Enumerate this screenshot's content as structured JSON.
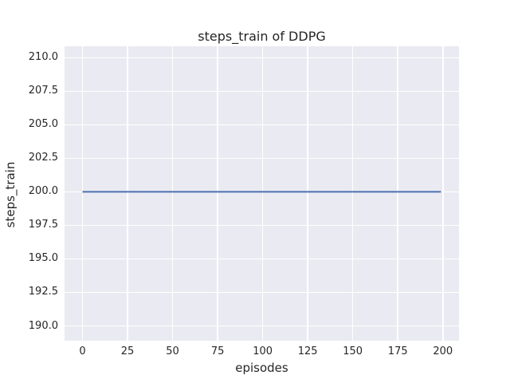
{
  "chart_data": {
    "type": "line",
    "title": "steps_train of DDPG",
    "xlabel": "episodes",
    "ylabel": "steps_train",
    "xlim": [
      -9.95,
      208.95
    ],
    "ylim": [
      188.9,
      210.85
    ],
    "xticks": [
      0,
      25,
      50,
      75,
      100,
      125,
      150,
      175,
      200
    ],
    "xtick_labels": [
      "0",
      "25",
      "50",
      "75",
      "100",
      "125",
      "150",
      "175",
      "200"
    ],
    "yticks": [
      190.0,
      192.5,
      195.0,
      197.5,
      200.0,
      202.5,
      205.0,
      207.5,
      210.0
    ],
    "ytick_labels": [
      "190.0",
      "192.5",
      "195.0",
      "197.5",
      "200.0",
      "202.5",
      "205.0",
      "207.5",
      "210.0"
    ],
    "grid": true,
    "legend_position": "none",
    "plot_background_color": "#eaeaf2",
    "grid_color": "#ffffff",
    "figure_background_color": "#ffffff",
    "text_color": "#262626",
    "series": [
      {
        "name": "steps_train",
        "color": "#4c72b0",
        "line_width": 2,
        "x": [
          0,
          199
        ],
        "y": [
          200,
          200
        ]
      }
    ]
  }
}
